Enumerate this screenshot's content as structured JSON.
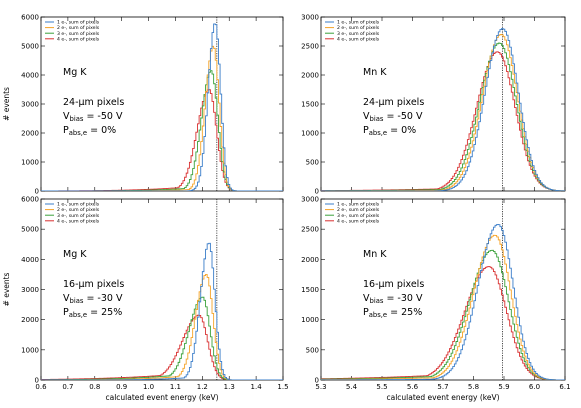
{
  "figure": {
    "xlabel": "calculated event energy (keV)",
    "ylabel": "# events"
  },
  "chart_data": [
    {
      "type": "line",
      "panel": "top-left",
      "xlim": [
        0.6,
        1.5
      ],
      "ylim": [
        0,
        6000
      ],
      "xticks": [
        0.6,
        0.7,
        0.8,
        0.9,
        1.0,
        1.1,
        1.2,
        1.3,
        1.4,
        1.5
      ],
      "yticks": [
        0,
        1000,
        2000,
        3000,
        4000,
        5000,
        6000
      ],
      "show_xticklabels": false,
      "show_ylabel": true,
      "show_xlabel": false,
      "ref_line_x": 1.254,
      "annotation": {
        "element": "Mg K",
        "pixel": "24-µm pixels",
        "vbias_sym": "V",
        "vbias_sub": "bias",
        "vbias_val": " = -50 V",
        "pabs_sym": "P",
        "pabs_sub": "abs,e",
        "pabs_val": " = 0%"
      },
      "legend_position": "top-left",
      "series": [
        {
          "name": "1 e-, sum of pixels",
          "color": "#3a7dc9",
          "peak_x": 1.245,
          "peak_y": 5800,
          "sigma_left": 0.026,
          "sigma_right": 0.02,
          "tail": 0.0
        },
        {
          "name": "2 e-, sum of pixels",
          "color": "#f5a327",
          "peak_x": 1.238,
          "peak_y": 5000,
          "sigma_left": 0.03,
          "sigma_right": 0.022,
          "tail": 0.02
        },
        {
          "name": "3 e-, sum of pixels",
          "color": "#3aa13a",
          "peak_x": 1.23,
          "peak_y": 4150,
          "sigma_left": 0.036,
          "sigma_right": 0.025,
          "tail": 0.04
        },
        {
          "name": "4 e-, sum of pixels",
          "color": "#d93030",
          "peak_x": 1.222,
          "peak_y": 3500,
          "sigma_left": 0.044,
          "sigma_right": 0.028,
          "tail": 0.06
        }
      ]
    },
    {
      "type": "line",
      "panel": "top-right",
      "xlim": [
        5.3,
        6.1
      ],
      "ylim": [
        0,
        3000
      ],
      "xticks": [
        5.3,
        5.4,
        5.5,
        5.6,
        5.7,
        5.8,
        5.9,
        6.0,
        6.1
      ],
      "yticks": [
        0,
        500,
        1000,
        1500,
        2000,
        2500,
        3000
      ],
      "show_xticklabels": false,
      "show_ylabel": false,
      "show_xlabel": false,
      "ref_line_x": 5.895,
      "annotation": {
        "element": "Mn K",
        "pixel": "24-µm pixels",
        "vbias_sym": "V",
        "vbias_sub": "bias",
        "vbias_val": " = -50 V",
        "pabs_sym": "P",
        "pabs_sub": "abs,e",
        "pabs_val": " = 0%"
      },
      "legend_position": "top-left",
      "series": [
        {
          "name": "1 e-, sum of pixels",
          "color": "#3a7dc9",
          "peak_x": 5.893,
          "peak_y": 2800,
          "sigma_left": 0.058,
          "sigma_right": 0.052,
          "tail": 0.0
        },
        {
          "name": "2 e-, sum of pixels",
          "color": "#f5a327",
          "peak_x": 5.888,
          "peak_y": 2700,
          "sigma_left": 0.061,
          "sigma_right": 0.054,
          "tail": 0.01
        },
        {
          "name": "3 e-, sum of pixels",
          "color": "#3aa13a",
          "peak_x": 5.882,
          "peak_y": 2550,
          "sigma_left": 0.064,
          "sigma_right": 0.056,
          "tail": 0.02
        },
        {
          "name": "4 e-, sum of pixels",
          "color": "#d93030",
          "peak_x": 5.876,
          "peak_y": 2400,
          "sigma_left": 0.068,
          "sigma_right": 0.058,
          "tail": 0.03
        }
      ]
    },
    {
      "type": "line",
      "panel": "bottom-left",
      "xlim": [
        0.6,
        1.5
      ],
      "ylim": [
        0,
        6000
      ],
      "xticks": [
        0.6,
        0.7,
        0.8,
        0.9,
        1.0,
        1.1,
        1.2,
        1.3,
        1.4,
        1.5
      ],
      "xticklabels": [
        "0.6",
        "0.7",
        "0.8",
        "0.9",
        "1.0",
        "1.1",
        "1.2",
        "1.3",
        "1.4",
        "1.5"
      ],
      "yticks": [
        0,
        1000,
        2000,
        3000,
        4000,
        5000,
        6000
      ],
      "show_xticklabels": true,
      "show_ylabel": true,
      "show_xlabel": true,
      "ref_line_x": 1.254,
      "annotation": {
        "element": "Mg K",
        "pixel": "16-µm pixels",
        "vbias_sym": "V",
        "vbias_sub": "bias",
        "vbias_val": " = -30 V",
        "pabs_sym": "P",
        "pabs_sub": "abs,e",
        "pabs_val": " = 25%"
      },
      "legend_position": "top-left",
      "series": [
        {
          "name": "1 e-, sum of pixels",
          "color": "#3a7dc9",
          "peak_x": 1.222,
          "peak_y": 4550,
          "sigma_left": 0.032,
          "sigma_right": 0.022,
          "tail": 0.03
        },
        {
          "name": "2 e-, sum of pixels",
          "color": "#f5a327",
          "peak_x": 1.212,
          "peak_y": 3500,
          "sigma_left": 0.04,
          "sigma_right": 0.025,
          "tail": 0.06
        },
        {
          "name": "3 e-, sum of pixels",
          "color": "#3aa13a",
          "peak_x": 1.198,
          "peak_y": 2750,
          "sigma_left": 0.05,
          "sigma_right": 0.028,
          "tail": 0.09
        },
        {
          "name": "4 e-, sum of pixels",
          "color": "#d93030",
          "peak_x": 1.185,
          "peak_y": 2150,
          "sigma_left": 0.062,
          "sigma_right": 0.032,
          "tail": 0.12
        }
      ]
    },
    {
      "type": "line",
      "panel": "bottom-right",
      "xlim": [
        5.3,
        6.1
      ],
      "ylim": [
        0,
        3000
      ],
      "xticks": [
        5.3,
        5.4,
        5.5,
        5.6,
        5.7,
        5.8,
        5.9,
        6.0,
        6.1
      ],
      "xticklabels": [
        "5.3",
        "5.4",
        "5.5",
        "5.6",
        "5.7",
        "5.8",
        "5.9",
        "6.0",
        "6.1"
      ],
      "yticks": [
        0,
        500,
        1000,
        1500,
        2000,
        2500,
        3000
      ],
      "show_xticklabels": true,
      "show_ylabel": false,
      "show_xlabel": true,
      "ref_line_x": 5.895,
      "annotation": {
        "element": "Mn K",
        "pixel": "16-µm pixels",
        "vbias_sym": "V",
        "vbias_sub": "bias",
        "vbias_val": " = -30 V",
        "pabs_sym": "P",
        "pabs_sub": "abs,e",
        "pabs_val": " = 25%"
      },
      "legend_position": "top-left",
      "series": [
        {
          "name": "1 e-, sum of pixels",
          "color": "#3a7dc9",
          "peak_x": 5.878,
          "peak_y": 2580,
          "sigma_left": 0.066,
          "sigma_right": 0.05,
          "tail": 0.01
        },
        {
          "name": "2 e-, sum of pixels",
          "color": "#f5a327",
          "peak_x": 5.868,
          "peak_y": 2400,
          "sigma_left": 0.07,
          "sigma_right": 0.052,
          "tail": 0.03
        },
        {
          "name": "3 e-, sum of pixels",
          "color": "#3aa13a",
          "peak_x": 5.858,
          "peak_y": 2150,
          "sigma_left": 0.074,
          "sigma_right": 0.055,
          "tail": 0.05
        },
        {
          "name": "4 e-, sum of pixels",
          "color": "#d93030",
          "peak_x": 5.848,
          "peak_y": 1880,
          "sigma_left": 0.079,
          "sigma_right": 0.058,
          "tail": 0.07
        }
      ]
    }
  ]
}
